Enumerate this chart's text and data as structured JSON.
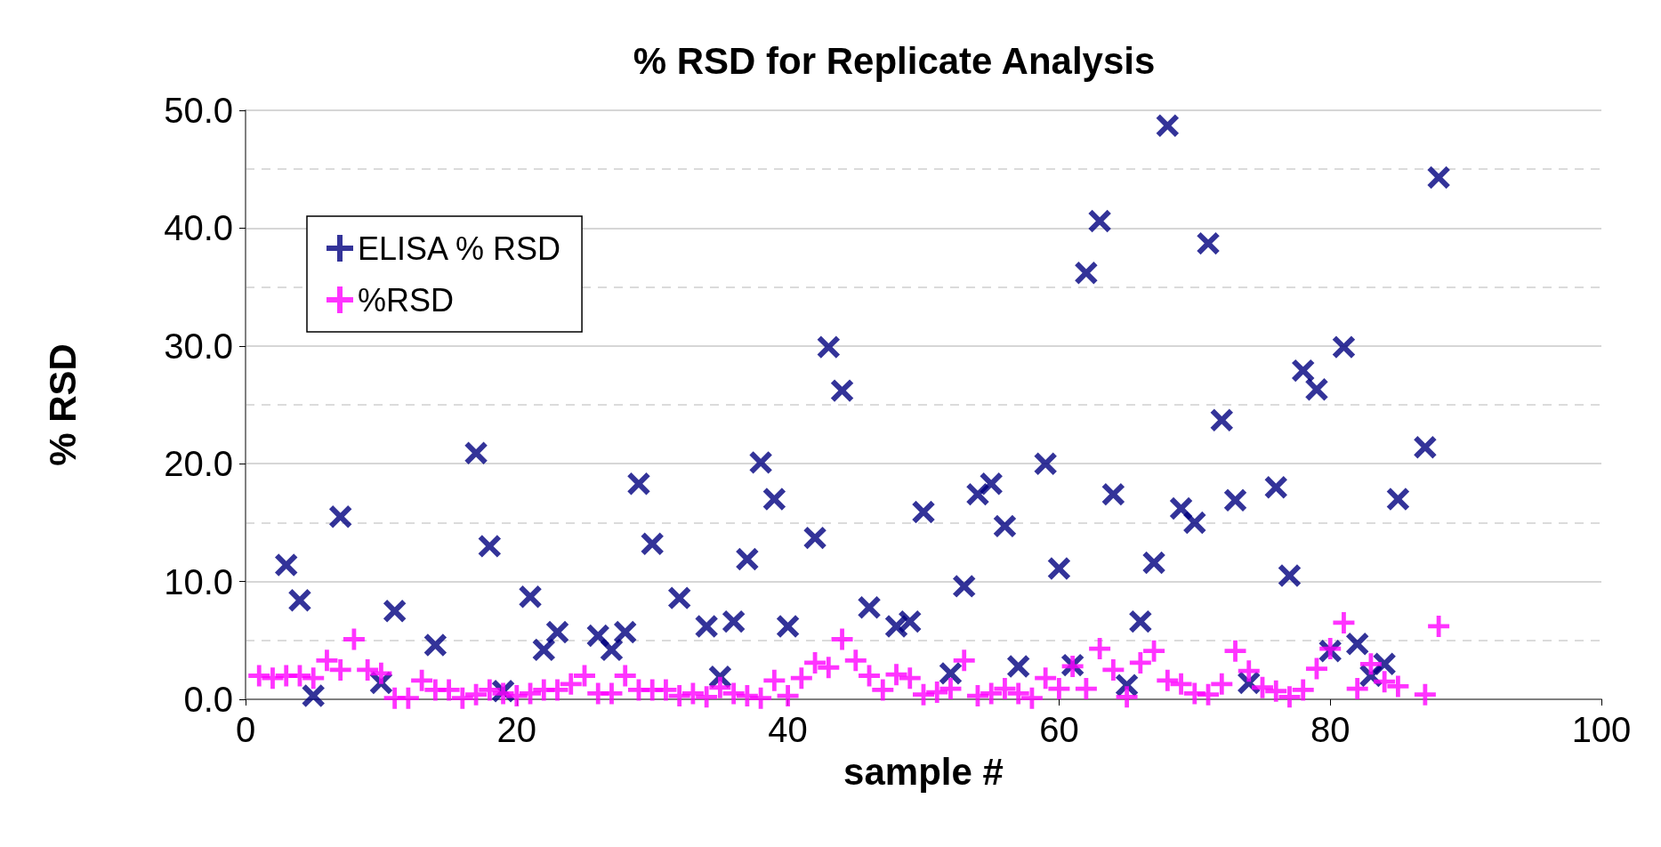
{
  "chart_data": {
    "type": "scatter",
    "title": "% RSD for Replicate Analysis",
    "xlabel": "sample #",
    "ylabel": "% RSD",
    "x": [
      1,
      2,
      3,
      4,
      5,
      6,
      7,
      8,
      9,
      10,
      11,
      12,
      13,
      14,
      15,
      16,
      17,
      18,
      19,
      20,
      21,
      22,
      23,
      24,
      25,
      26,
      27,
      28,
      29,
      30,
      31,
      32,
      33,
      34,
      35,
      36,
      37,
      38,
      39,
      40,
      41,
      42,
      43,
      44,
      45,
      46,
      47,
      48,
      49,
      50,
      51,
      52,
      53,
      54,
      55,
      56,
      57,
      58,
      59,
      60,
      61,
      62,
      63,
      64,
      65,
      66,
      67,
      68,
      69,
      70,
      71,
      72,
      73,
      74,
      75,
      76,
      77,
      78,
      79,
      80,
      81,
      82,
      83,
      84,
      85,
      86,
      87,
      88
    ],
    "series": [
      {
        "name": "ELISA % RSD",
        "color": "#000080",
        "marker": "cross",
        "values": [
          null,
          null,
          11.4,
          8.4,
          0.3,
          null,
          15.5,
          null,
          null,
          1.4,
          7.5,
          null,
          null,
          4.6,
          null,
          null,
          20.9,
          13.0,
          0.7,
          null,
          8.7,
          4.2,
          5.7,
          null,
          null,
          5.4,
          4.2,
          5.7,
          18.3,
          13.2,
          null,
          8.6,
          null,
          6.2,
          1.9,
          6.6,
          11.9,
          20.1,
          17.0,
          6.2,
          null,
          13.7,
          29.9,
          26.2,
          null,
          7.8,
          null,
          6.2,
          6.6,
          15.9,
          null,
          2.2,
          9.6,
          17.4,
          18.3,
          14.7,
          2.8,
          null,
          20.0,
          11.1,
          2.9,
          36.2,
          40.6,
          17.4,
          1.2,
          6.6,
          11.6,
          48.7,
          16.2,
          15.0,
          38.7,
          23.7,
          16.9,
          1.4,
          null,
          18.0,
          10.5,
          27.9,
          26.3,
          4.1,
          29.9,
          4.7,
          2.0,
          3.0,
          17.0,
          null,
          21.4,
          44.3
        ]
      },
      {
        "name": "%RSD",
        "color": "#ff00ff",
        "marker": "cross",
        "values": [
          2.0,
          1.8,
          2.0,
          2.0,
          1.8,
          3.3,
          2.5,
          5.1,
          2.5,
          2.2,
          0.1,
          0.1,
          1.6,
          0.8,
          0.8,
          0.1,
          0.4,
          0.8,
          0.5,
          0.3,
          0.5,
          0.8,
          0.8,
          1.3,
          2.0,
          0.5,
          0.5,
          2.0,
          0.8,
          0.8,
          0.8,
          0.3,
          0.5,
          0.2,
          1.0,
          0.5,
          0.3,
          0.1,
          1.6,
          0.3,
          1.8,
          3.1,
          2.7,
          5.1,
          3.3,
          2.0,
          0.8,
          2.1,
          1.8,
          0.4,
          0.6,
          0.9,
          3.3,
          0.3,
          0.5,
          0.9,
          0.5,
          0.1,
          1.8,
          0.9,
          2.8,
          0.9,
          4.3,
          2.5,
          0.2,
          3.1,
          4.1,
          1.6,
          1.3,
          0.5,
          0.4,
          1.3,
          4.1,
          2.4,
          1.0,
          0.7,
          0.2,
          0.8,
          2.6,
          4.3,
          6.5,
          0.9,
          3.0,
          1.5,
          1.1,
          null,
          0.4,
          6.2
        ]
      }
    ],
    "xlim": [
      0,
      100
    ],
    "xticks": [
      0,
      20,
      40,
      60,
      80,
      100
    ],
    "ylim": [
      0,
      50
    ],
    "yticks": [
      {
        "value": 0,
        "label": "0.0"
      },
      {
        "value": 10,
        "label": "10.0"
      },
      {
        "value": 20,
        "label": "20.0"
      },
      {
        "value": 30,
        "label": "30.0"
      },
      {
        "value": 40,
        "label": "40.0"
      },
      {
        "value": 50,
        "label": "50.0"
      }
    ],
    "grid": "y",
    "legend": "top left"
  }
}
